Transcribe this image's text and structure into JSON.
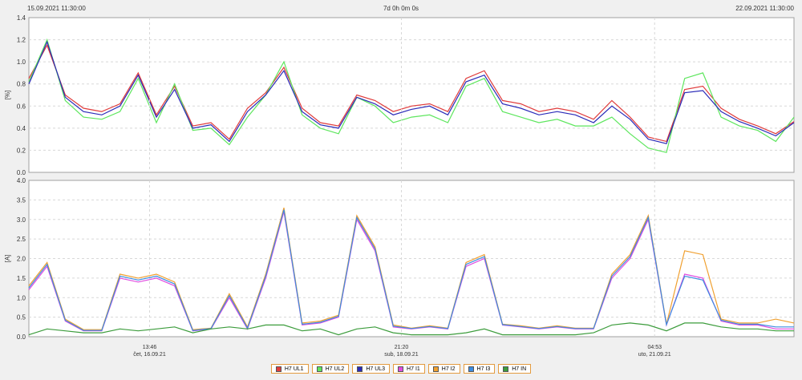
{
  "header": {
    "start": "15.09.2021 11:30:00",
    "span": "7d 0h 0m 0s",
    "end": "22.09.2021 11:30:00"
  },
  "colors": {
    "H7 UL1": "#e03c3c",
    "H7 UL2": "#5ee65e",
    "H7 UL3": "#2a2ab8",
    "H7 I1": "#e04ce0",
    "H7 I2": "#f0a030",
    "H7 I3": "#3c8ce0",
    "H7 IN": "#3c9c3c"
  },
  "legend": [
    "H7 UL1",
    "H7 UL2",
    "H7 UL3",
    "H7 I1",
    "H7 I2",
    "H7 I3",
    "H7 IN"
  ],
  "chart_data": [
    {
      "type": "line",
      "ylabel": "[%]",
      "ylim": [
        0,
        1.4
      ],
      "yticks": [
        "0.0",
        "0.2",
        "0.4",
        "0.6",
        "0.8",
        "1.0",
        "1.2",
        "1.4"
      ],
      "grid": true,
      "x": [
        0,
        4,
        8,
        12,
        16,
        20,
        24,
        28,
        32,
        36,
        40,
        44,
        48,
        52,
        56,
        60,
        64,
        68,
        72,
        76,
        80,
        84,
        88,
        92,
        96,
        100,
        104,
        108,
        112,
        116,
        120,
        124,
        128,
        132,
        136,
        140,
        144,
        148,
        152,
        156,
        160,
        164,
        168
      ],
      "series": [
        {
          "name": "H7 UL1",
          "values": [
            0.85,
            1.15,
            0.7,
            0.58,
            0.55,
            0.62,
            0.9,
            0.52,
            0.78,
            0.42,
            0.45,
            0.3,
            0.58,
            0.72,
            0.95,
            0.58,
            0.45,
            0.42,
            0.7,
            0.65,
            0.55,
            0.6,
            0.62,
            0.55,
            0.85,
            0.92,
            0.65,
            0.62,
            0.55,
            0.58,
            0.55,
            0.48,
            0.65,
            0.5,
            0.32,
            0.28,
            0.75,
            0.78,
            0.58,
            0.48,
            0.42,
            0.35,
            0.46
          ]
        },
        {
          "name": "H7 UL2",
          "values": [
            0.82,
            1.2,
            0.65,
            0.5,
            0.48,
            0.55,
            0.85,
            0.45,
            0.8,
            0.38,
            0.4,
            0.25,
            0.5,
            0.7,
            1.0,
            0.52,
            0.4,
            0.35,
            0.68,
            0.6,
            0.45,
            0.5,
            0.52,
            0.45,
            0.78,
            0.85,
            0.55,
            0.5,
            0.45,
            0.48,
            0.42,
            0.42,
            0.5,
            0.35,
            0.22,
            0.18,
            0.85,
            0.9,
            0.5,
            0.42,
            0.38,
            0.28,
            0.5
          ]
        },
        {
          "name": "H7 UL3",
          "values": [
            0.8,
            1.18,
            0.68,
            0.55,
            0.52,
            0.6,
            0.88,
            0.5,
            0.75,
            0.4,
            0.43,
            0.28,
            0.55,
            0.7,
            0.92,
            0.55,
            0.43,
            0.4,
            0.68,
            0.62,
            0.52,
            0.57,
            0.6,
            0.52,
            0.82,
            0.88,
            0.62,
            0.58,
            0.52,
            0.55,
            0.52,
            0.45,
            0.6,
            0.48,
            0.3,
            0.26,
            0.72,
            0.74,
            0.55,
            0.46,
            0.4,
            0.33,
            0.45
          ]
        }
      ]
    },
    {
      "type": "line",
      "ylabel": "[A]",
      "ylim": [
        0,
        4.0
      ],
      "yticks": [
        "0.0",
        "0.5",
        "1.0",
        "1.5",
        "2.0",
        "2.5",
        "3.0",
        "3.5",
        "4.0"
      ],
      "grid": true,
      "xtick_positions": [
        26.5,
        81.8,
        137.4
      ],
      "xticks": [
        "13:46\nčet, 16.09.21",
        "21:20\nsub, 18.09.21",
        "04:53\nuto, 21.09.21"
      ],
      "x": [
        0,
        4,
        8,
        12,
        16,
        20,
        24,
        28,
        32,
        36,
        40,
        44,
        48,
        52,
        56,
        60,
        64,
        68,
        72,
        76,
        80,
        84,
        88,
        92,
        96,
        100,
        104,
        108,
        112,
        116,
        120,
        124,
        128,
        132,
        136,
        140,
        144,
        148,
        152,
        156,
        160,
        164,
        168
      ],
      "series": [
        {
          "name": "H7 I1",
          "values": [
            1.2,
            1.8,
            0.4,
            0.15,
            0.15,
            1.5,
            1.4,
            1.5,
            1.3,
            0.15,
            0.2,
            1.0,
            0.2,
            1.5,
            3.2,
            0.3,
            0.35,
            0.5,
            3.0,
            2.2,
            0.25,
            0.2,
            0.25,
            0.2,
            1.8,
            2.0,
            0.3,
            0.25,
            0.2,
            0.25,
            0.2,
            0.2,
            1.5,
            2.0,
            3.0,
            0.3,
            1.6,
            1.5,
            0.4,
            0.3,
            0.3,
            0.2,
            0.2
          ]
        },
        {
          "name": "H7 I2",
          "values": [
            1.3,
            1.9,
            0.45,
            0.18,
            0.18,
            1.6,
            1.5,
            1.6,
            1.4,
            0.18,
            0.22,
            1.1,
            0.25,
            1.6,
            3.3,
            0.35,
            0.4,
            0.55,
            3.1,
            2.3,
            0.3,
            0.22,
            0.28,
            0.22,
            1.9,
            2.1,
            0.32,
            0.28,
            0.22,
            0.28,
            0.22,
            0.22,
            1.6,
            2.1,
            3.1,
            0.32,
            2.2,
            2.1,
            0.45,
            0.35,
            0.35,
            0.45,
            0.35
          ]
        },
        {
          "name": "H7 I3",
          "values": [
            1.25,
            1.85,
            0.42,
            0.16,
            0.16,
            1.55,
            1.45,
            1.55,
            1.35,
            0.16,
            0.21,
            1.05,
            0.22,
            1.55,
            3.25,
            0.32,
            0.37,
            0.52,
            3.05,
            2.25,
            0.27,
            0.21,
            0.26,
            0.21,
            1.85,
            2.05,
            0.31,
            0.26,
            0.21,
            0.26,
            0.21,
            0.21,
            1.55,
            2.05,
            3.05,
            0.31,
            1.55,
            1.45,
            0.42,
            0.32,
            0.32,
            0.25,
            0.25
          ]
        },
        {
          "name": "H7 IN",
          "values": [
            0.05,
            0.2,
            0.15,
            0.1,
            0.1,
            0.2,
            0.15,
            0.2,
            0.25,
            0.1,
            0.2,
            0.25,
            0.2,
            0.3,
            0.3,
            0.15,
            0.2,
            0.05,
            0.2,
            0.25,
            0.1,
            0.05,
            0.05,
            0.05,
            0.1,
            0.2,
            0.05,
            0.05,
            0.05,
            0.05,
            0.05,
            0.1,
            0.3,
            0.35,
            0.3,
            0.15,
            0.35,
            0.35,
            0.25,
            0.2,
            0.2,
            0.15,
            0.15
          ]
        }
      ]
    }
  ]
}
